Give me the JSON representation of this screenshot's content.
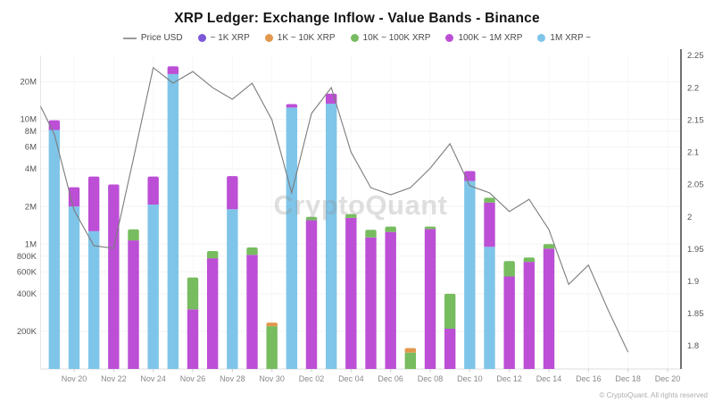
{
  "title": "XRP Ledger: Exchange Inflow - Value Bands - Binance",
  "watermark": "CryptoQuant",
  "copyright": "© CryptoQuant. All rights reserved",
  "colors": {
    "price_line": "#7b7b7b",
    "band_under_1k": "#7A58D8",
    "band_1k_10k": "#E2984E",
    "band_10k_100k": "#77BC5F",
    "band_100k_1m": "#BC4FD6",
    "band_1m_plus": "#7FC5E9"
  },
  "legend": [
    {
      "label": "Price USD",
      "type": "line",
      "color": "#9a9a9a"
    },
    {
      "label": "~ 1K XRP",
      "type": "dot",
      "color": "#7A58D8"
    },
    {
      "label": "1K ~ 10K XRP",
      "type": "dot",
      "color": "#E2984E"
    },
    {
      "label": "10K ~ 100K XRP",
      "type": "dot",
      "color": "#77BC5F"
    },
    {
      "label": "100K ~ 1M XRP",
      "type": "dot",
      "color": "#BC4FD6"
    },
    {
      "label": "1M XRP ~",
      "type": "dot",
      "color": "#7FC5E9"
    }
  ],
  "chart_data": {
    "type": "bar",
    "subtype": "stacked-log-bars-with-price-line-overlay",
    "categories": [
      "Nov 18",
      "Nov 19",
      "Nov 20",
      "Nov 21",
      "Nov 22",
      "Nov 23",
      "Nov 24",
      "Nov 25",
      "Nov 26",
      "Nov 27",
      "Nov 28",
      "Nov 29",
      "Nov 30",
      "Dec 01",
      "Dec 02",
      "Dec 03",
      "Dec 04",
      "Dec 05",
      "Dec 06",
      "Dec 07",
      "Dec 08",
      "Dec 09",
      "Dec 10",
      "Dec 11",
      "Dec 12",
      "Dec 13",
      "Dec 14",
      "Dec 15",
      "Dec 16",
      "Dec 17",
      "Dec 18",
      "Dec 19",
      "Dec 20"
    ],
    "stack_order_note": "series listed bottom-to-top as stacked",
    "series": [
      {
        "name": "1M XRP ~",
        "color": "#7FC5E9",
        "values": [
          0,
          8200000,
          2000000,
          1270000,
          0,
          0,
          2070000,
          23000000,
          0,
          0,
          1900000,
          0,
          0,
          12400000,
          0,
          13300000,
          0,
          0,
          0,
          0,
          0,
          0,
          3200000,
          950000,
          0,
          0,
          0,
          0,
          0,
          0,
          0,
          0,
          0
        ]
      },
      {
        "name": "100K ~ 1M XRP",
        "color": "#BC4FD6",
        "values": [
          0,
          1600000,
          850000,
          2200000,
          3000000,
          1070000,
          1400000,
          3500000,
          300000,
          770000,
          1600000,
          820000,
          0,
          800000,
          1550000,
          2700000,
          1620000,
          1130000,
          1250000,
          0,
          1320000,
          210000,
          640000,
          1200000,
          550000,
          720000,
          920000,
          0,
          0,
          0,
          0,
          0,
          0
        ]
      },
      {
        "name": "10K ~ 100K XRP",
        "color": "#77BC5F",
        "values": [
          0,
          0,
          0,
          0,
          0,
          240000,
          0,
          0,
          240000,
          110000,
          0,
          120000,
          220000,
          0,
          100000,
          0,
          120000,
          170000,
          130000,
          135000,
          60000,
          190000,
          0,
          200000,
          180000,
          60000,
          80000,
          0,
          0,
          0,
          0,
          0,
          0
        ]
      },
      {
        "name": "1K ~ 10K XRP",
        "color": "#E2984E",
        "values": [
          0,
          0,
          0,
          0,
          0,
          0,
          0,
          0,
          0,
          0,
          0,
          0,
          15000,
          0,
          0,
          0,
          0,
          0,
          0,
          12000,
          0,
          0,
          0,
          0,
          0,
          0,
          0,
          0,
          0,
          0,
          0,
          0,
          0
        ]
      },
      {
        "name": "~ 1K XRP",
        "color": "#7A58D8",
        "values": [
          0,
          0,
          0,
          0,
          0,
          0,
          0,
          0,
          0,
          0,
          0,
          0,
          0,
          0,
          0,
          0,
          0,
          0,
          0,
          0,
          0,
          0,
          0,
          0,
          0,
          0,
          0,
          0,
          0,
          0,
          0,
          0,
          0
        ]
      }
    ],
    "price_series": {
      "name": "Price USD",
      "color": "#7b7b7b",
      "values": [
        2.19,
        2.128,
        2.01,
        1.955,
        1.951,
        2.09,
        2.231,
        2.207,
        2.225,
        2.2,
        2.182,
        2.207,
        2.15,
        2.037,
        2.16,
        2.2,
        2.1,
        2.045,
        2.034,
        2.045,
        2.075,
        2.113,
        2.048,
        2.037,
        2.008,
        2.027,
        1.98,
        1.895,
        1.925,
        1.855,
        1.79,
        null,
        null
      ]
    },
    "left_axis": {
      "scale": "log",
      "min": 100000,
      "max": 30000000,
      "ticks": [
        {
          "label": "200K",
          "value": 200000
        },
        {
          "label": "400K",
          "value": 400000
        },
        {
          "label": "600K",
          "value": 600000
        },
        {
          "label": "800K",
          "value": 800000
        },
        {
          "label": "1M",
          "value": 1000000
        },
        {
          "label": "2M",
          "value": 2000000
        },
        {
          "label": "4M",
          "value": 4000000
        },
        {
          "label": "6M",
          "value": 6000000
        },
        {
          "label": "8M",
          "value": 8000000
        },
        {
          "label": "10M",
          "value": 10000000
        },
        {
          "label": "20M",
          "value": 20000000
        }
      ]
    },
    "right_axis": {
      "scale": "linear",
      "ylim": [
        1.8,
        2.25
      ],
      "ticks": [
        {
          "label": "1.8",
          "value": 1.8
        },
        {
          "label": "1.85",
          "value": 1.85
        },
        {
          "label": "1.9",
          "value": 1.9
        },
        {
          "label": "1.95",
          "value": 1.95
        },
        {
          "label": "2",
          "value": 2.0
        },
        {
          "label": "2.05",
          "value": 2.05
        },
        {
          "label": "2.1",
          "value": 2.1
        },
        {
          "label": "2.15",
          "value": 2.15
        },
        {
          "label": "2.2",
          "value": 2.2
        },
        {
          "label": "2.25",
          "value": 2.25
        }
      ]
    },
    "x_ticks": [
      "Nov 20",
      "Nov 22",
      "Nov 24",
      "Nov 26",
      "Nov 28",
      "Nov 30",
      "Dec 02",
      "Dec 04",
      "Dec 06",
      "Dec 08",
      "Dec 10",
      "Dec 12",
      "Dec 14",
      "Dec 16",
      "Dec 18",
      "Dec 20"
    ],
    "grid": true,
    "legend_position": "top"
  }
}
